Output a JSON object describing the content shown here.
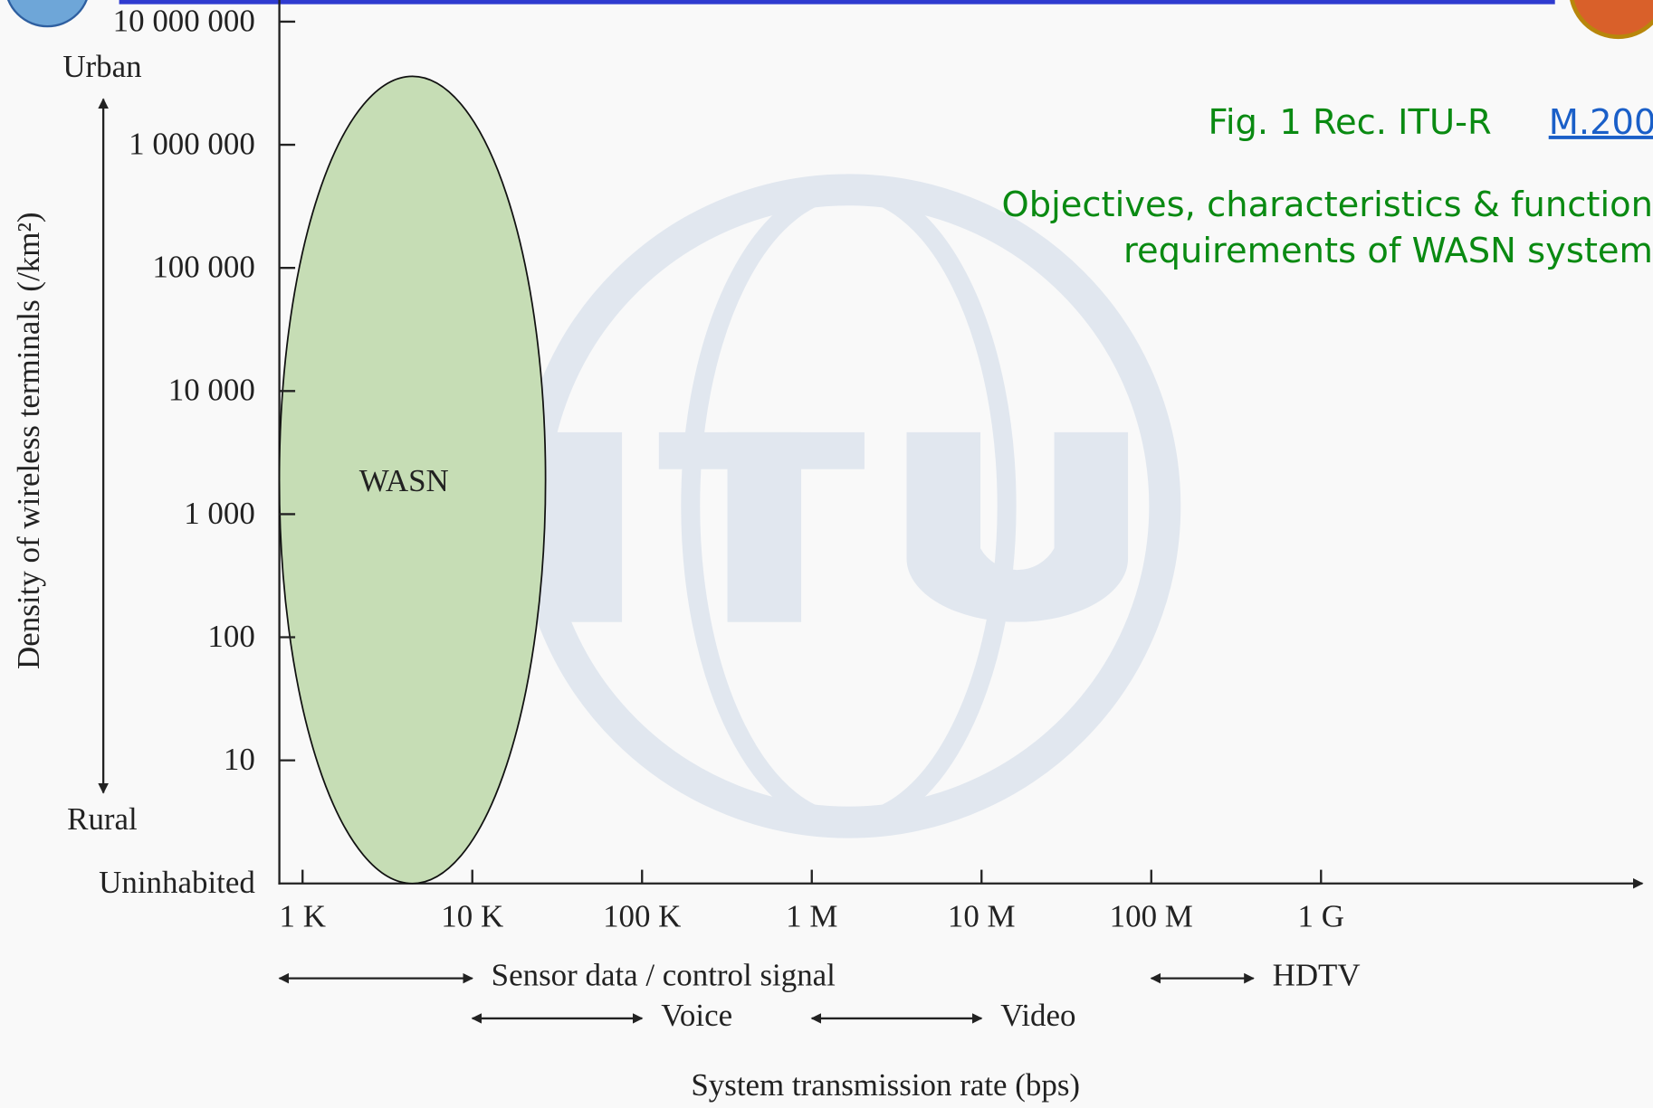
{
  "chart_data": {
    "type": "region",
    "x_label": "System transmission rate (bps)",
    "y_label": "Density of wireless terminals (/km²)",
    "xlog": true,
    "ylog": true,
    "xlim": [
      730,
      75000000000
    ],
    "ylim": [
      1,
      15000000
    ],
    "xticks": [
      {
        "value": 1000,
        "label": "1 K"
      },
      {
        "value": 10000,
        "label": "10 K"
      },
      {
        "value": 100000,
        "label": "100 K"
      },
      {
        "value": 1000000,
        "label": "1 M"
      },
      {
        "value": 10000000,
        "label": "10 M"
      },
      {
        "value": 100000000,
        "label": "100 M"
      },
      {
        "value": 1000000000,
        "label": "1 G"
      }
    ],
    "yticks": [
      {
        "value": 1,
        "label": "Uninhabited"
      },
      10,
      100,
      {
        "value": 1000,
        "label": "1 000"
      },
      {
        "value": 10000,
        "label": "10 000"
      },
      {
        "value": 100000,
        "label": "100 000"
      },
      {
        "value": 1000000,
        "label": "1 000 000"
      },
      {
        "value": 10000000,
        "label": "10 000 000"
      }
    ],
    "regions": [
      {
        "name": "WASN",
        "color": "#c6ddb5",
        "x": [
          730,
          27000
        ],
        "y": [
          1,
          3600000
        ]
      }
    ],
    "ranges": [
      {
        "name": "Sensor data / control signal",
        "from": 730,
        "to": 10000
      },
      {
        "name": "Voice",
        "from": 10000,
        "to": 100000
      },
      {
        "name": "Video",
        "from": 1000000,
        "to": 10000000
      },
      {
        "name": "HDTV",
        "from": 100000000,
        "to": 400000000
      }
    ],
    "density_labels": {
      "high": "Urban",
      "low": "Rural"
    },
    "figure_ref": "Fig. 1  Rec.  ITU-R",
    "figure_link": "M.200",
    "caption_lines": [
      "Objectives, characteristics &  function",
      "requirements of WASN system"
    ]
  }
}
